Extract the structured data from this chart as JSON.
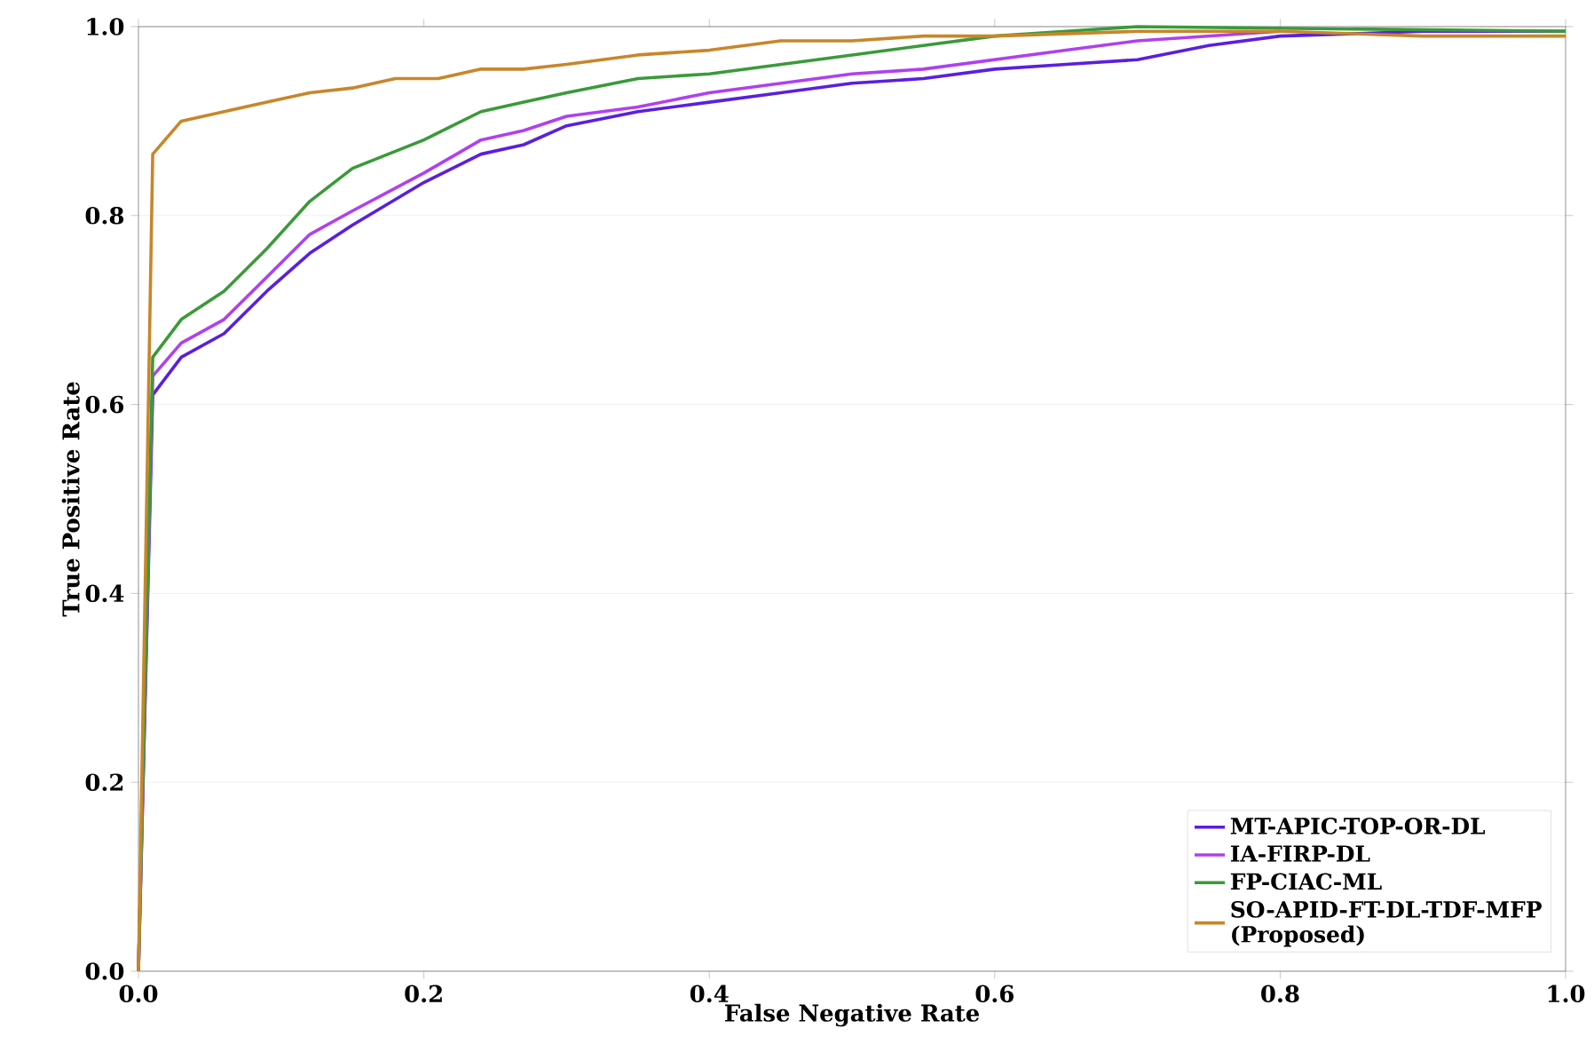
{
  "chart_data": {
    "type": "line",
    "xlabel": "False Negative Rate",
    "ylabel": "True Positive Rate",
    "xlim": [
      0,
      1
    ],
    "ylim": [
      0,
      1
    ],
    "xticks": [
      {
        "value": 0,
        "label": "0.0"
      },
      0.2,
      0.4,
      0.6,
      0.8,
      {
        "value": 1,
        "label": "1.0"
      }
    ],
    "yticks": [
      {
        "value": 0,
        "label": "0.0"
      },
      0.2,
      0.4,
      0.6,
      0.8,
      {
        "value": 1,
        "label": "1.0"
      }
    ],
    "grid": "y",
    "legend": "bottom right",
    "line_style": "solid",
    "marker": "none",
    "series": [
      {
        "name": "MT-APIC-TOP-OR-DL",
        "color": "#5a1fe0",
        "x": [
          0,
          0.01,
          0.03,
          0.06,
          0.09,
          0.12,
          0.15,
          0.2,
          0.24,
          0.27,
          0.3,
          0.35,
          0.4,
          0.45,
          0.5,
          0.55,
          0.6,
          0.65,
          0.7,
          0.75,
          0.8,
          0.9,
          1.0
        ],
        "values": [
          0,
          0.61,
          0.65,
          0.675,
          0.72,
          0.76,
          0.79,
          0.835,
          0.865,
          0.875,
          0.895,
          0.91,
          0.92,
          0.93,
          0.94,
          0.945,
          0.955,
          0.96,
          0.965,
          0.98,
          0.99,
          0.995,
          0.995
        ]
      },
      {
        "name": "IA-FIRP-DL",
        "color": "#b040f0",
        "x": [
          0,
          0.01,
          0.03,
          0.06,
          0.09,
          0.12,
          0.15,
          0.2,
          0.24,
          0.27,
          0.3,
          0.35,
          0.4,
          0.45,
          0.5,
          0.55,
          0.6,
          0.65,
          0.7,
          0.75,
          0.8
        ],
        "values": [
          0,
          0.63,
          0.665,
          0.69,
          0.735,
          0.78,
          0.805,
          0.845,
          0.88,
          0.89,
          0.905,
          0.915,
          0.93,
          0.94,
          0.95,
          0.955,
          0.965,
          0.975,
          0.985,
          0.99,
          0.995
        ]
      },
      {
        "name": "FP-CIAC-ML",
        "color": "#3a9a3a",
        "x": [
          0,
          0.01,
          0.03,
          0.06,
          0.09,
          0.12,
          0.15,
          0.2,
          0.24,
          0.27,
          0.3,
          0.35,
          0.4,
          0.45,
          0.5,
          0.55,
          0.6,
          0.65,
          0.7,
          1.0
        ],
        "values": [
          0,
          0.65,
          0.69,
          0.72,
          0.765,
          0.815,
          0.85,
          0.88,
          0.91,
          0.92,
          0.93,
          0.945,
          0.95,
          0.96,
          0.97,
          0.98,
          0.99,
          0.995,
          1.0,
          0.995
        ]
      },
      {
        "name": "SO-APID-FT-DL-TDF-MFP\n(Proposed)",
        "color": "#c8862a",
        "x": [
          0,
          0.01,
          0.03,
          0.06,
          0.09,
          0.12,
          0.15,
          0.18,
          0.21,
          0.24,
          0.27,
          0.3,
          0.35,
          0.4,
          0.45,
          0.5,
          0.55,
          0.6,
          0.7,
          0.8,
          0.9,
          1.0
        ],
        "values": [
          0,
          0.865,
          0.9,
          0.91,
          0.92,
          0.93,
          0.935,
          0.945,
          0.945,
          0.955,
          0.955,
          0.96,
          0.97,
          0.975,
          0.985,
          0.985,
          0.99,
          0.99,
          0.995,
          0.995,
          0.99,
          0.99
        ]
      }
    ]
  }
}
